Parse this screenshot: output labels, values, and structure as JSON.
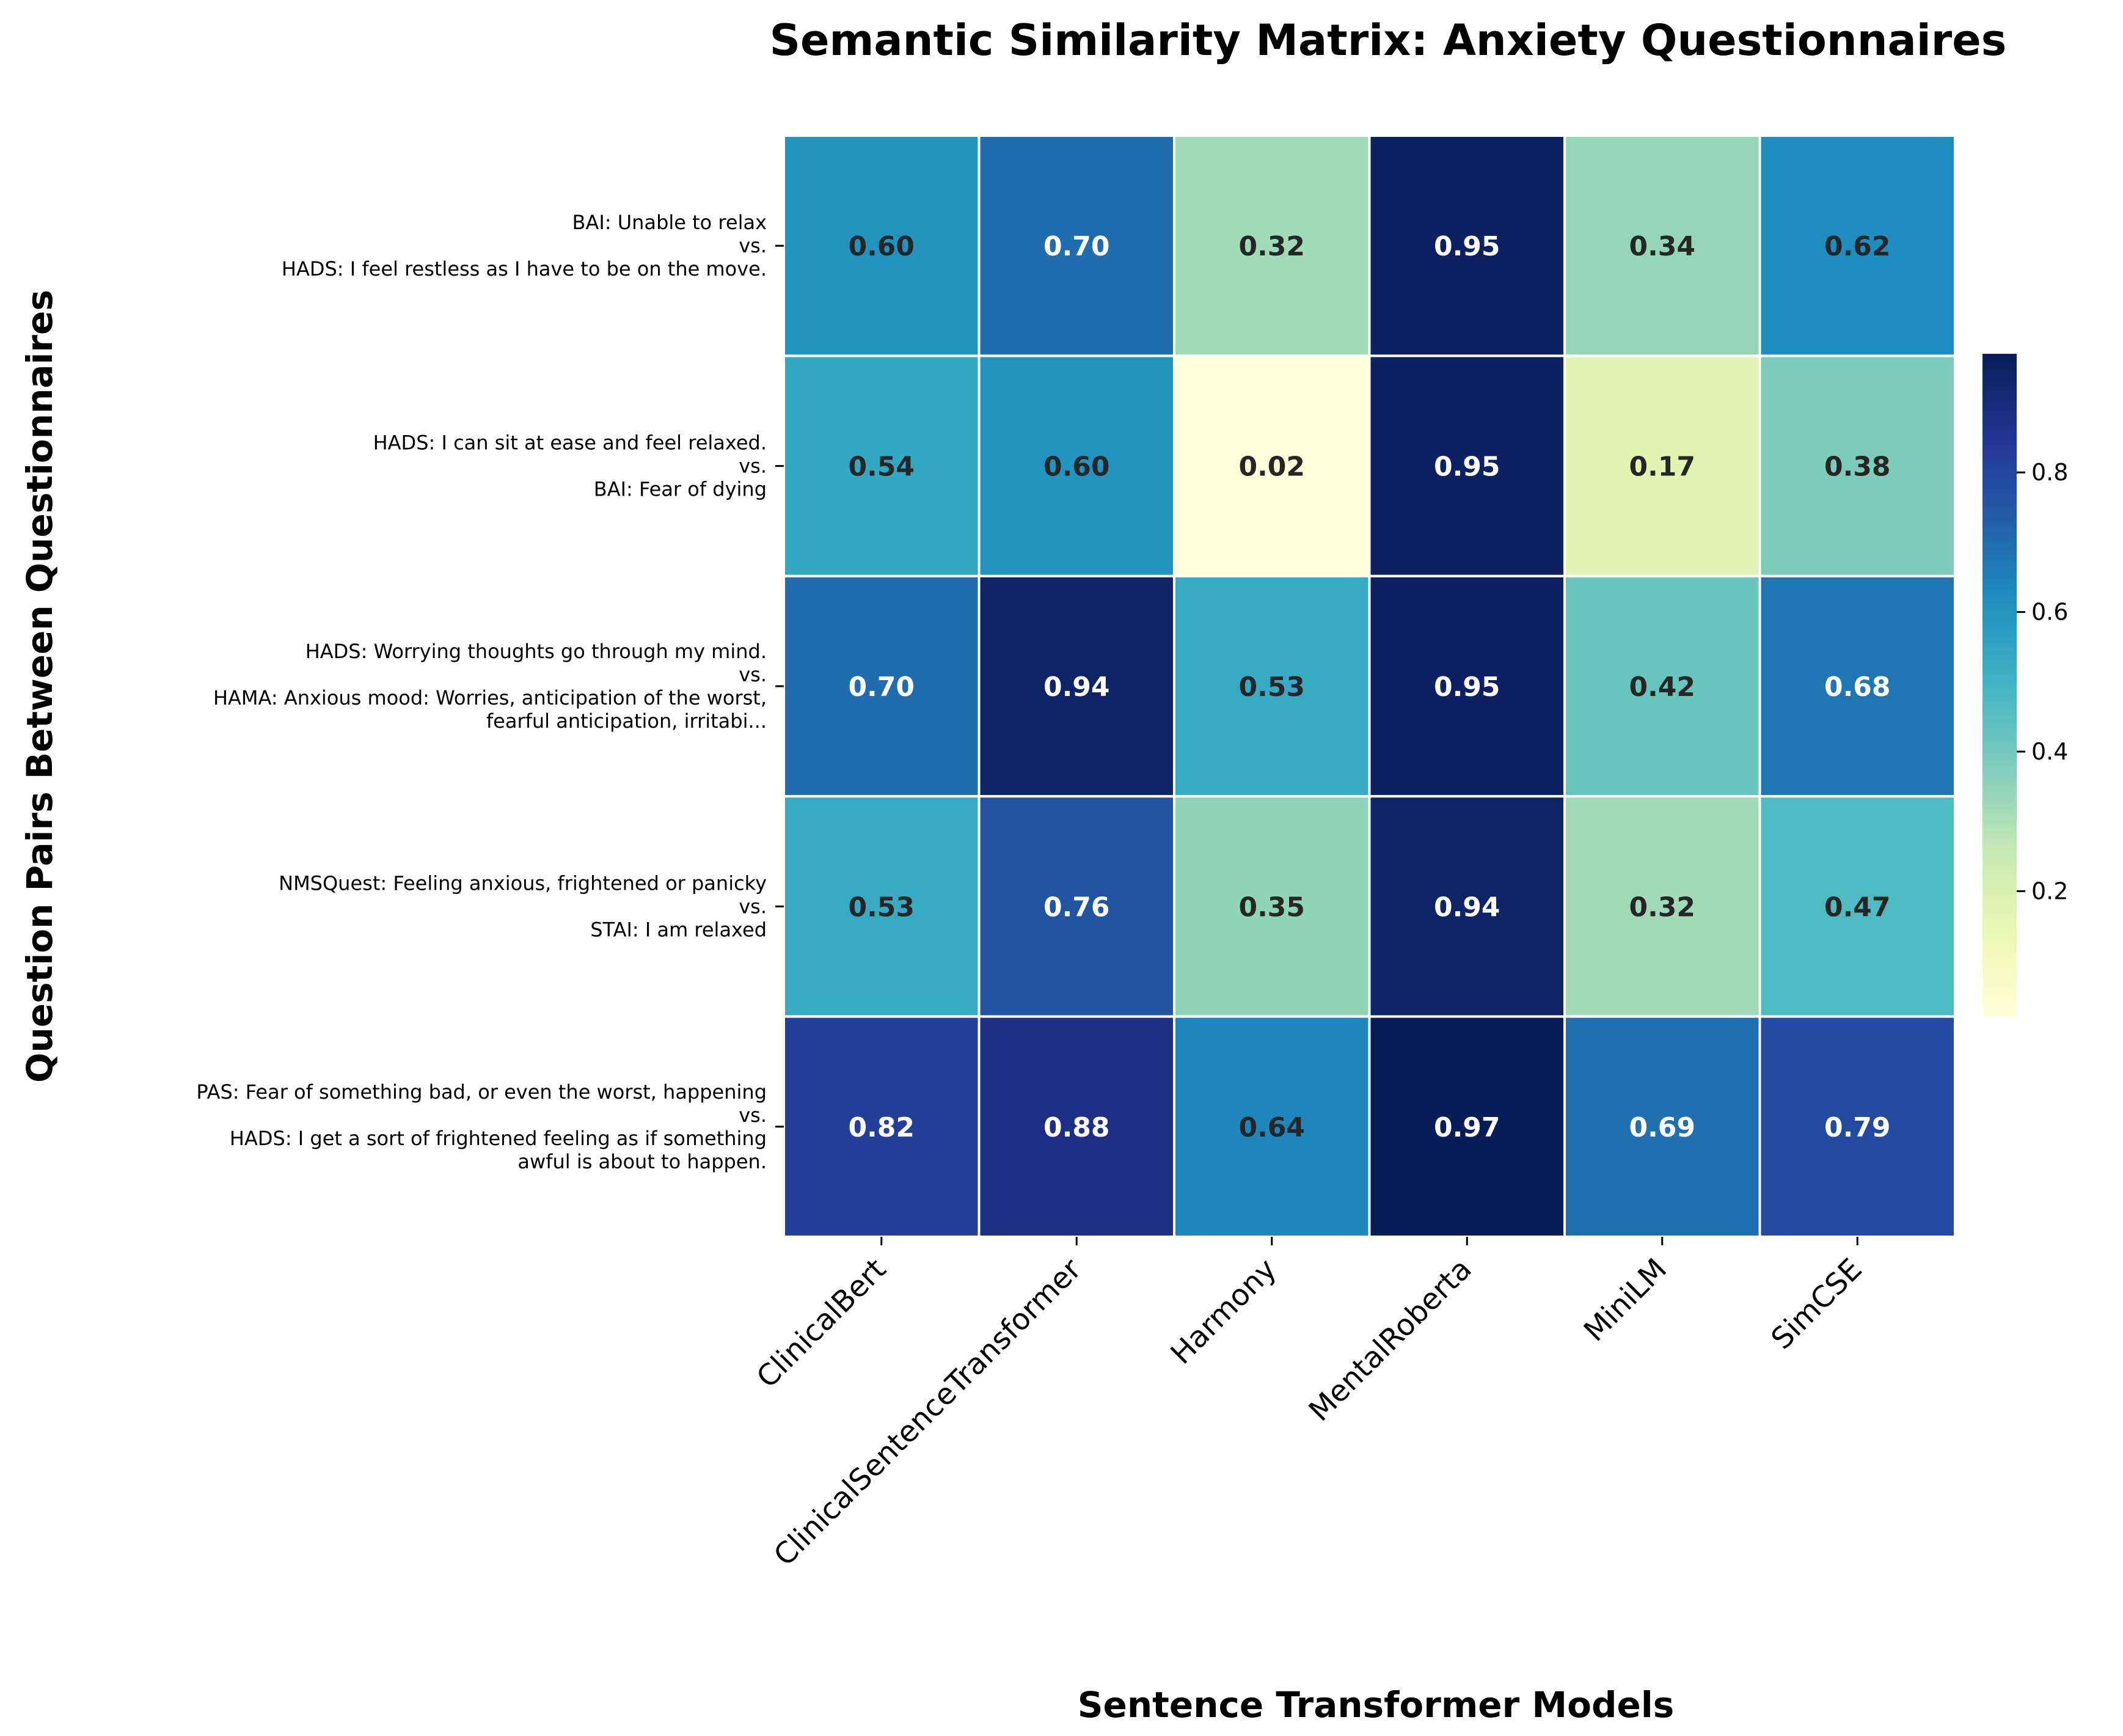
{
  "chart_data": {
    "type": "heatmap",
    "title": "Semantic Similarity Matrix: Anxiety Questionnaires",
    "xlabel": "Sentence Transformer Models",
    "ylabel": "Question Pairs Between Questionnaires",
    "columns": [
      "ClinicalBert",
      "ClinicalSentenceTransformer",
      "Harmony",
      "MentalRoberta",
      "MiniLM",
      "SimCSE"
    ],
    "rows": [
      [
        "BAI: Unable to relax",
        "vs.",
        "HADS: I feel restless as I have to be on the move."
      ],
      [
        "HADS: I can sit at ease and feel relaxed.",
        "vs.",
        "BAI: Fear of dying"
      ],
      [
        "HADS: Worrying thoughts go through my mind.",
        "vs.",
        "HAMA: Anxious mood: Worries, anticipation of the worst,",
        "fearful anticipation, irritabi..."
      ],
      [
        "NMSQuest: Feeling anxious, frightened or panicky",
        "vs.",
        "STAI: I am relaxed"
      ],
      [
        "PAS: Fear of something bad, or even the worst, happening",
        "vs.",
        "HADS: I get a sort of frightened feeling as if something",
        "awful is about to happen."
      ]
    ],
    "values": [
      [
        0.6,
        0.7,
        0.32,
        0.95,
        0.34,
        0.62
      ],
      [
        0.54,
        0.6,
        0.02,
        0.95,
        0.17,
        0.38
      ],
      [
        0.7,
        0.94,
        0.53,
        0.95,
        0.42,
        0.68
      ],
      [
        0.53,
        0.76,
        0.35,
        0.94,
        0.32,
        0.47
      ],
      [
        0.82,
        0.88,
        0.64,
        0.97,
        0.69,
        0.79
      ]
    ],
    "value_format": "2 decimals",
    "colormap": "YlGnBu",
    "color_range": [
      0.02,
      0.97
    ],
    "colorbar_ticks": [
      0.2,
      0.4,
      0.6,
      0.8
    ],
    "colorbar_tick_labels": [
      "0.2",
      "0.4",
      "0.6",
      "0.8"
    ],
    "colors": {
      "dark_text": "#262626",
      "light_text": "#ffffff",
      "grid_line": "#ffffff"
    }
  }
}
